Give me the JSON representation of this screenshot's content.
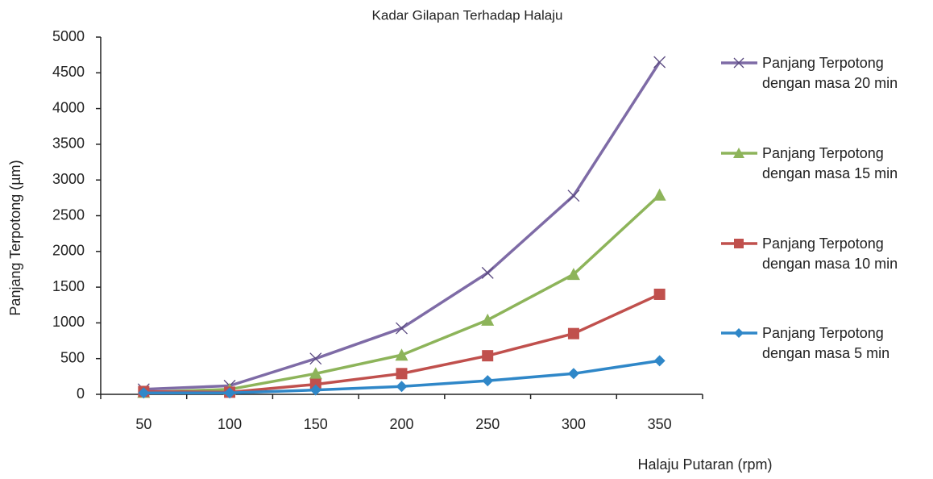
{
  "chart_data": {
    "type": "line",
    "title": "Kadar Gilapan Terhadap Halaju",
    "x_label": "Halaju Putaran (rpm)",
    "y_label": "Panjang Terpotong (µm)",
    "categories": [
      "50",
      "100",
      "150",
      "200",
      "250",
      "300",
      "350"
    ],
    "ylim": [
      0,
      5000
    ],
    "yticks": [
      0,
      500,
      1000,
      1500,
      2000,
      2500,
      3000,
      3500,
      4000,
      4500,
      5000
    ],
    "legend": "right",
    "series": [
      {
        "name": "Panjang Terpotong dengan masa 20 min",
        "color": "#7e6ba6",
        "marker": "x",
        "values": [
          70,
          120,
          500,
          925,
          1700,
          2780,
          4650
        ]
      },
      {
        "name": "Panjang Terpotong dengan masa 15 min",
        "color": "#8db45a",
        "marker": "triangle",
        "values": [
          30,
          70,
          290,
          550,
          1040,
          1680,
          2790
        ]
      },
      {
        "name": "Panjang Terpotong dengan masa 10 min",
        "color": "#c0504d",
        "marker": "square",
        "values": [
          40,
          30,
          140,
          290,
          540,
          850,
          1400
        ]
      },
      {
        "name": "Panjang Terpotong dengan masa 5 min",
        "color": "#2f87c8",
        "marker": "diamond",
        "values": [
          20,
          20,
          60,
          110,
          190,
          290,
          470
        ]
      }
    ]
  }
}
